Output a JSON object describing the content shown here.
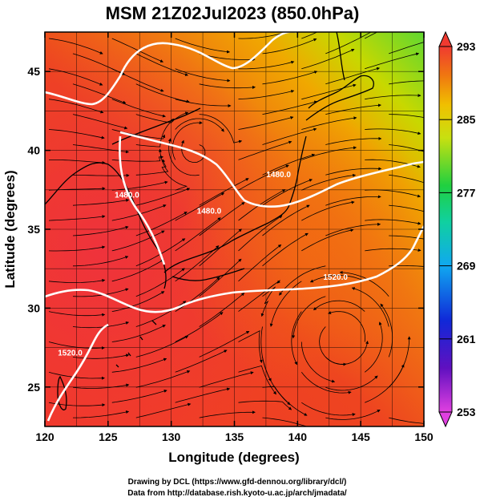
{
  "title": "MSM 21Z02Jul2023 (850.0hPa)",
  "x_axis": {
    "label": "Longitude (degrees)",
    "range": [
      120,
      150
    ],
    "ticks": [
      "120",
      "125",
      "130",
      "135",
      "140",
      "145",
      "150"
    ]
  },
  "y_axis": {
    "label": "Latitude  (degrees)",
    "range": [
      22.5,
      47.5
    ],
    "ticks": [
      "25",
      "30",
      "35",
      "40",
      "45"
    ]
  },
  "colorbar": {
    "min": 253,
    "max": 293,
    "ticks": [
      "293",
      "285",
      "277",
      "269",
      "261",
      "253"
    ]
  },
  "contours": [
    {
      "label": "1480.0",
      "lon": 138.5,
      "lat": 38.3
    },
    {
      "label": "1480.0",
      "lon": 133.0,
      "lat": 36.0
    },
    {
      "label": "1480.0",
      "lon": 126.5,
      "lat": 37.0
    },
    {
      "label": "1520.0",
      "lon": 143.0,
      "lat": 31.8
    },
    {
      "label": "1520.0",
      "lon": 122.0,
      "lat": 27.0
    }
  ],
  "credits": [
    "Drawing by DCL (https://www.gfd-dennou.org/library/dcl/)",
    "Data from http://database.rish.kyoto-u.ac.jp/arch/jmadata/"
  ]
}
